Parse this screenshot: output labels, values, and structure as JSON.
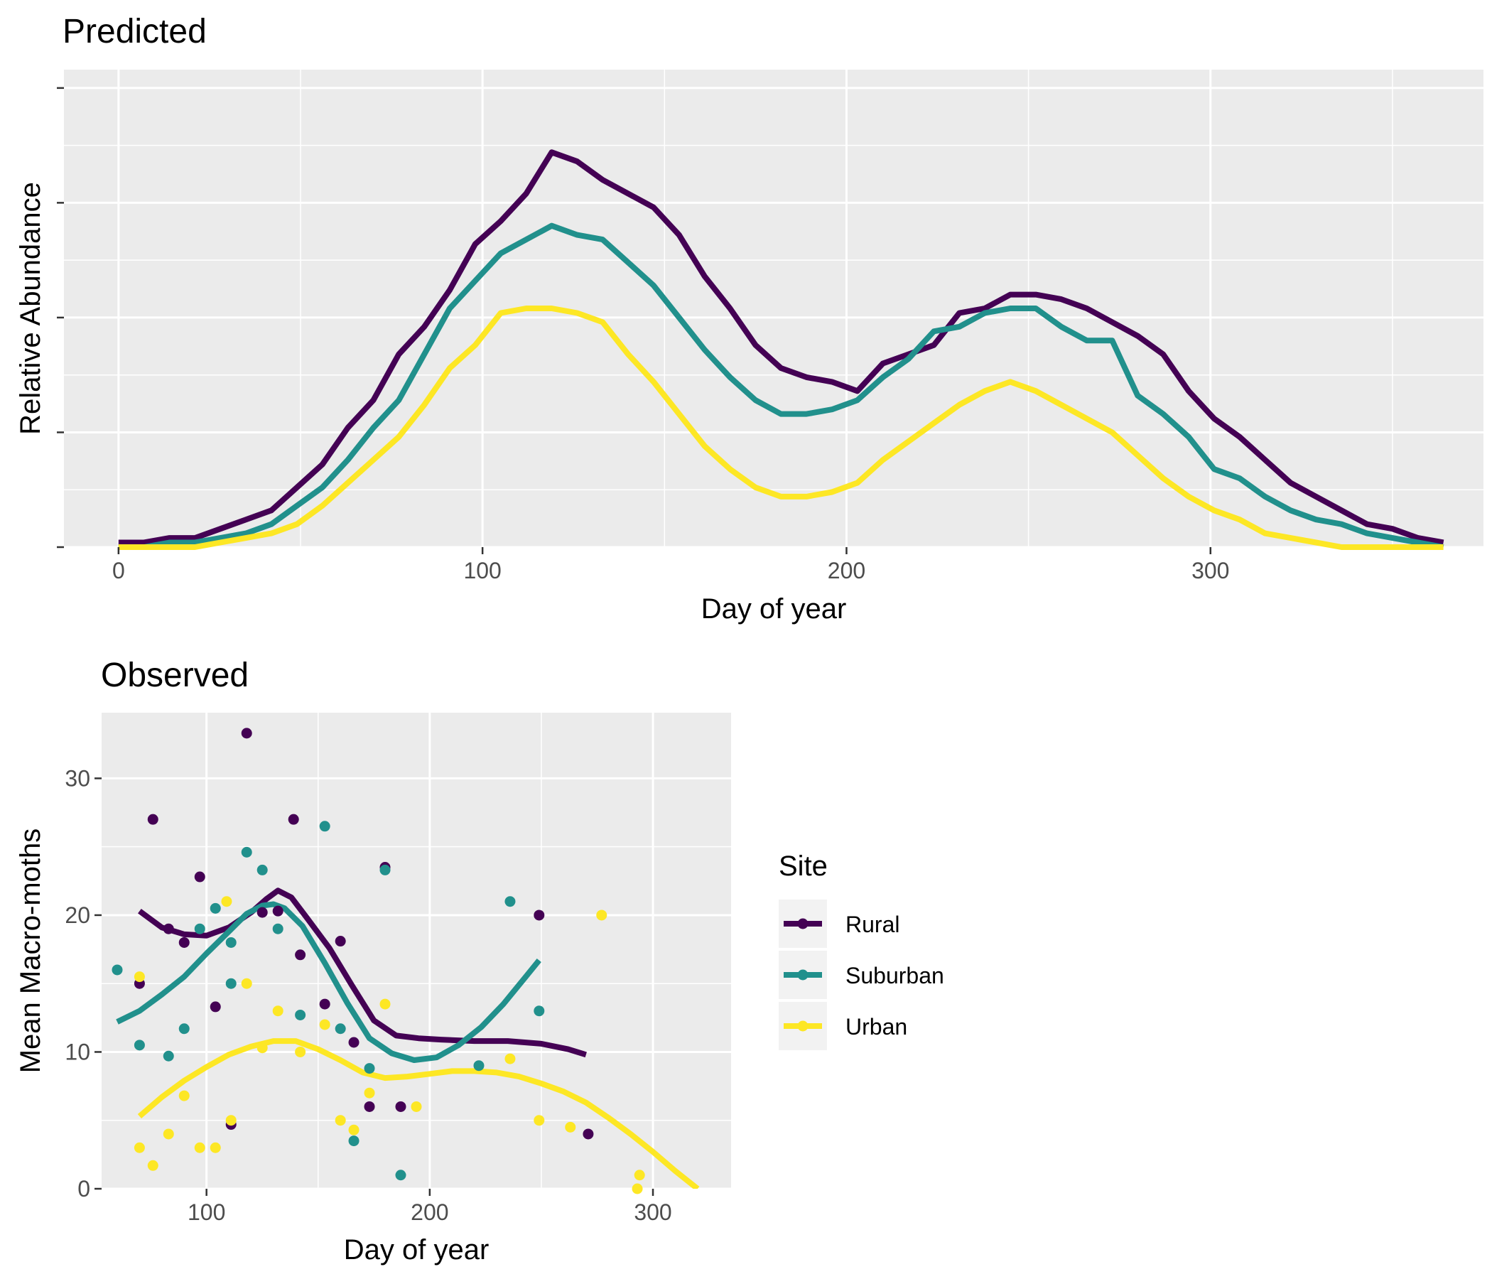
{
  "chart_data": [
    {
      "type": "line",
      "title": "Predicted",
      "xlabel": "Day of year",
      "ylabel": "Relative Abundance",
      "xlim": [
        -15,
        375
      ],
      "ylim": [
        0,
        1.04
      ],
      "x_ticks": [
        0,
        100,
        200,
        300
      ],
      "y_ticks": [
        0,
        0.25,
        0.5,
        0.75,
        1.0
      ],
      "y_tick_labels_shown": false,
      "grid": true,
      "x": [
        0,
        7,
        14,
        21,
        28,
        35,
        42,
        49,
        56,
        63,
        70,
        77,
        84,
        91,
        98,
        105,
        112,
        119,
        126,
        133,
        140,
        147,
        154,
        161,
        168,
        175,
        182,
        189,
        196,
        203,
        210,
        217,
        224,
        231,
        238,
        245,
        252,
        259,
        266,
        273,
        280,
        287,
        294,
        301,
        308,
        315,
        322,
        329,
        336,
        343,
        350,
        357,
        364
      ],
      "series": [
        {
          "name": "Rural",
          "color": "#440154",
          "values": [
            0.01,
            0.01,
            0.02,
            0.02,
            0.04,
            0.06,
            0.08,
            0.13,
            0.18,
            0.26,
            0.32,
            0.42,
            0.48,
            0.56,
            0.66,
            0.71,
            0.77,
            0.86,
            0.84,
            0.8,
            0.77,
            0.74,
            0.68,
            0.59,
            0.52,
            0.44,
            0.39,
            0.37,
            0.36,
            0.34,
            0.4,
            0.42,
            0.44,
            0.51,
            0.52,
            0.55,
            0.55,
            0.54,
            0.52,
            0.49,
            0.46,
            0.42,
            0.34,
            0.28,
            0.24,
            0.19,
            0.14,
            0.11,
            0.08,
            0.05,
            0.04,
            0.02,
            0.01
          ]
        },
        {
          "name": "Suburban",
          "color": "#21908C",
          "values": [
            0.0,
            0.0,
            0.01,
            0.01,
            0.02,
            0.03,
            0.05,
            0.09,
            0.13,
            0.19,
            0.26,
            0.32,
            0.42,
            0.52,
            0.58,
            0.64,
            0.67,
            0.7,
            0.68,
            0.67,
            0.62,
            0.57,
            0.5,
            0.43,
            0.37,
            0.32,
            0.29,
            0.29,
            0.3,
            0.32,
            0.37,
            0.41,
            0.47,
            0.48,
            0.51,
            0.52,
            0.52,
            0.48,
            0.45,
            0.45,
            0.33,
            0.29,
            0.24,
            0.17,
            0.15,
            0.11,
            0.08,
            0.06,
            0.05,
            0.03,
            0.02,
            0.01,
            0.0
          ]
        },
        {
          "name": "Urban",
          "color": "#FDE725",
          "values": [
            0.0,
            0.0,
            0.0,
            0.0,
            0.01,
            0.02,
            0.03,
            0.05,
            0.09,
            0.14,
            0.19,
            0.24,
            0.31,
            0.39,
            0.44,
            0.51,
            0.52,
            0.52,
            0.51,
            0.49,
            0.42,
            0.36,
            0.29,
            0.22,
            0.17,
            0.13,
            0.11,
            0.11,
            0.12,
            0.14,
            0.19,
            0.23,
            0.27,
            0.31,
            0.34,
            0.36,
            0.34,
            0.31,
            0.28,
            0.25,
            0.2,
            0.15,
            0.11,
            0.08,
            0.06,
            0.03,
            0.02,
            0.01,
            0.0,
            0.0,
            0.0,
            0.0,
            0.0
          ]
        }
      ]
    },
    {
      "type": "scatter",
      "title": "Observed",
      "xlabel": "Day of year",
      "ylabel": "Mean Macro-moths",
      "xlim": [
        53,
        335
      ],
      "ylim": [
        0,
        34.8
      ],
      "x_ticks": [
        100,
        200,
        300
      ],
      "y_ticks": [
        0,
        10,
        20,
        30
      ],
      "grid": true,
      "legend_placement": "right",
      "legend_title": "Site",
      "series": [
        {
          "name": "Rural",
          "color": "#440154",
          "points": [
            [
              70,
              15
            ],
            [
              76,
              27
            ],
            [
              83,
              19
            ],
            [
              90,
              18
            ],
            [
              97,
              22.8
            ],
            [
              104,
              13.3
            ],
            [
              111,
              4.7
            ],
            [
              118,
              33.3
            ],
            [
              125,
              20.2
            ],
            [
              132,
              20.3
            ],
            [
              139,
              27
            ],
            [
              142,
              17.1
            ],
            [
              153,
              13.5
            ],
            [
              160,
              18.1
            ],
            [
              166,
              10.7
            ],
            [
              173,
              6
            ],
            [
              180,
              23.5
            ],
            [
              187,
              6
            ],
            [
              249,
              20
            ],
            [
              271,
              4
            ]
          ],
          "smooth": [
            [
              70,
              20.3
            ],
            [
              80,
              19.1
            ],
            [
              90,
              18.6
            ],
            [
              100,
              18.5
            ],
            [
              110,
              19.1
            ],
            [
              120,
              20.2
            ],
            [
              127,
              21.2
            ],
            [
              132,
              21.8
            ],
            [
              138,
              21.3
            ],
            [
              145,
              19.8
            ],
            [
              155,
              17.6
            ],
            [
              165,
              14.9
            ],
            [
              175,
              12.3
            ],
            [
              185,
              11.2
            ],
            [
              195,
              11
            ],
            [
              205,
              10.9
            ],
            [
              220,
              10.8
            ],
            [
              235,
              10.8
            ],
            [
              250,
              10.6
            ],
            [
              262,
              10.2
            ],
            [
              270,
              9.8
            ]
          ]
        },
        {
          "name": "Suburban",
          "color": "#21908C",
          "points": [
            [
              60,
              16
            ],
            [
              70,
              10.5
            ],
            [
              83,
              9.7
            ],
            [
              90,
              11.7
            ],
            [
              97,
              19
            ],
            [
              104,
              20.5
            ],
            [
              111,
              18
            ],
            [
              111,
              15
            ],
            [
              118,
              24.6
            ],
            [
              125,
              23.3
            ],
            [
              132,
              19
            ],
            [
              142,
              12.7
            ],
            [
              153,
              26.5
            ],
            [
              160,
              11.7
            ],
            [
              166,
              3.5
            ],
            [
              173,
              8.8
            ],
            [
              180,
              23.3
            ],
            [
              187,
              1
            ],
            [
              222,
              9
            ],
            [
              236,
              21
            ],
            [
              249,
              13
            ]
          ],
          "smooth": [
            [
              60,
              12.2
            ],
            [
              70,
              13
            ],
            [
              80,
              14.2
            ],
            [
              90,
              15.5
            ],
            [
              100,
              17.2
            ],
            [
              110,
              18.8
            ],
            [
              118,
              20.1
            ],
            [
              125,
              20.7
            ],
            [
              130,
              20.8
            ],
            [
              135,
              20.5
            ],
            [
              143,
              19.2
            ],
            [
              153,
              16.5
            ],
            [
              163,
              13.6
            ],
            [
              173,
              11
            ],
            [
              183,
              9.9
            ],
            [
              193,
              9.4
            ],
            [
              203,
              9.6
            ],
            [
              213,
              10.5
            ],
            [
              223,
              11.8
            ],
            [
              233,
              13.5
            ],
            [
              243,
              15.5
            ],
            [
              249,
              16.7
            ]
          ]
        },
        {
          "name": "Urban",
          "color": "#FDE725",
          "points": [
            [
              70,
              3
            ],
            [
              70,
              15.5
            ],
            [
              76,
              1.7
            ],
            [
              83,
              4
            ],
            [
              90,
              6.8
            ],
            [
              97,
              3
            ],
            [
              104,
              3
            ],
            [
              109,
              21
            ],
            [
              111,
              5
            ],
            [
              118,
              15
            ],
            [
              125,
              10.3
            ],
            [
              132,
              13
            ],
            [
              142,
              10
            ],
            [
              153,
              12
            ],
            [
              160,
              5
            ],
            [
              166,
              4.3
            ],
            [
              173,
              7
            ],
            [
              180,
              13.5
            ],
            [
              194,
              6
            ],
            [
              236,
              9.5
            ],
            [
              249,
              5
            ],
            [
              263,
              4.5
            ],
            [
              277,
              20
            ],
            [
              293,
              0
            ],
            [
              294,
              1
            ]
          ],
          "smooth": [
            [
              70,
              5.3
            ],
            [
              80,
              6.7
            ],
            [
              90,
              7.9
            ],
            [
              100,
              8.9
            ],
            [
              110,
              9.8
            ],
            [
              120,
              10.4
            ],
            [
              130,
              10.8
            ],
            [
              140,
              10.8
            ],
            [
              150,
              10.2
            ],
            [
              160,
              9.4
            ],
            [
              170,
              8.5
            ],
            [
              180,
              8.1
            ],
            [
              190,
              8.2
            ],
            [
              200,
              8.4
            ],
            [
              210,
              8.6
            ],
            [
              220,
              8.6
            ],
            [
              230,
              8.5
            ],
            [
              240,
              8.2
            ],
            [
              250,
              7.7
            ],
            [
              260,
              7.1
            ],
            [
              270,
              6.3
            ],
            [
              280,
              5.2
            ],
            [
              290,
              4
            ],
            [
              300,
              2.7
            ],
            [
              310,
              1.3
            ],
            [
              320,
              0
            ]
          ]
        }
      ]
    }
  ]
}
